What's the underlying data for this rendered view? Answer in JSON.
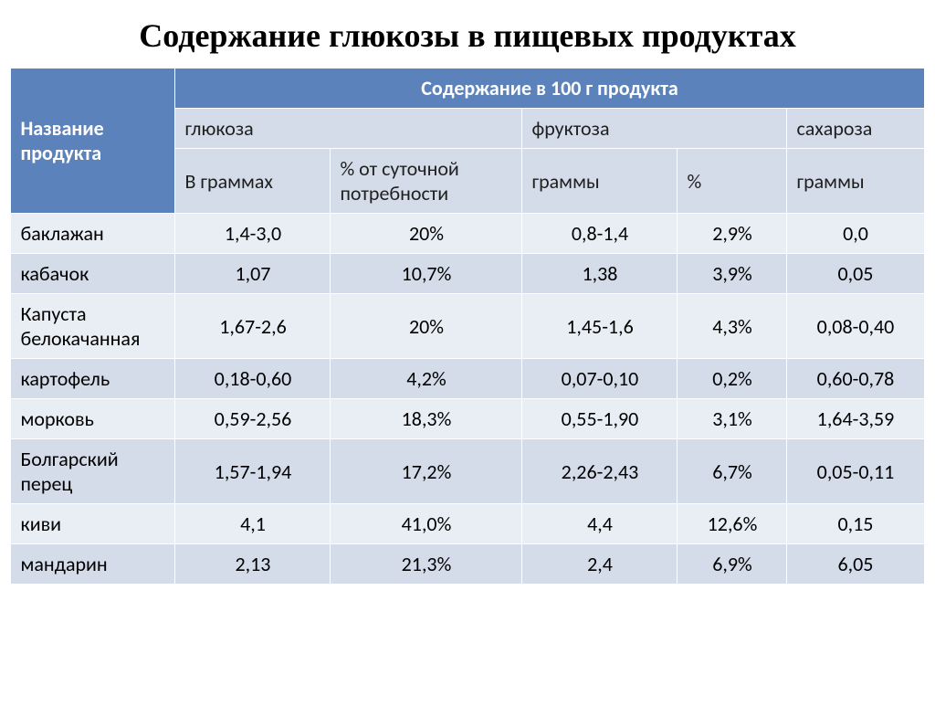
{
  "title": "Содержание глюкозы в пищевых продуктах",
  "table": {
    "type": "table",
    "header": {
      "product_name": "Название продукта",
      "content_per_100g": "Содержание в 100 г продукта",
      "glucose": "глюкоза",
      "fructose": "фруктоза",
      "sucrose": "сахароза",
      "in_grams": "В граммах",
      "pct_of_daily": "% от суточной потребности",
      "grams": "граммы",
      "pct": "%",
      "grams2": "граммы"
    },
    "rows": [
      {
        "name": "баклажан",
        "glucose_g": "1,4-3,0",
        "glucose_pct": "20%",
        "fructose_g": "0,8-1,4",
        "fructose_pct": "2,9%",
        "sucrose_g": "0,0"
      },
      {
        "name": "кабачок",
        "glucose_g": "1,07",
        "glucose_pct": "10,7%",
        "fructose_g": "1,38",
        "fructose_pct": "3,9%",
        "sucrose_g": "0,05"
      },
      {
        "name": "Капуста белокачанная",
        "glucose_g": "1,67-2,6",
        "glucose_pct": "20%",
        "fructose_g": "1,45-1,6",
        "fructose_pct": "4,3%",
        "sucrose_g": "0,08-0,40"
      },
      {
        "name": "картофель",
        "glucose_g": "0,18-0,60",
        "glucose_pct": "4,2%",
        "fructose_g": "0,07-0,10",
        "fructose_pct": "0,2%",
        "sucrose_g": "0,60-0,78"
      },
      {
        "name": "морковь",
        "glucose_g": "0,59-2,56",
        "glucose_pct": "18,3%",
        "fructose_g": "0,55-1,90",
        "fructose_pct": "3,1%",
        "sucrose_g": "1,64-3,59"
      },
      {
        "name": "Болгарский перец",
        "glucose_g": "1,57-1,94",
        "glucose_pct": "17,2%",
        "fructose_g": "2,26-2,43",
        "fructose_pct": "6,7%",
        "sucrose_g": "0,05-0,11"
      },
      {
        "name": "киви",
        "glucose_g": "4,1",
        "glucose_pct": "41,0%",
        "fructose_g": "4,4",
        "fructose_pct": "12,6%",
        "sucrose_g": "0,15"
      },
      {
        "name": "мандарин",
        "glucose_g": "2,13",
        "glucose_pct": "21,3%",
        "fructose_g": "2,4",
        "fructose_pct": "6,9%",
        "sucrose_g": "6,05"
      }
    ],
    "colors": {
      "header_dark_bg": "#5b82ba",
      "header_dark_fg": "#ffffff",
      "header_light_bg": "#d3dce8",
      "row_odd_bg": "#e9edf4",
      "row_even_bg": "#d3dce8",
      "border": "#ffffff",
      "text": "#000000"
    },
    "fonts": {
      "title_family": "Times New Roman",
      "title_size_pt": 28,
      "body_family": "Calibri",
      "body_size_pt": 16
    }
  }
}
